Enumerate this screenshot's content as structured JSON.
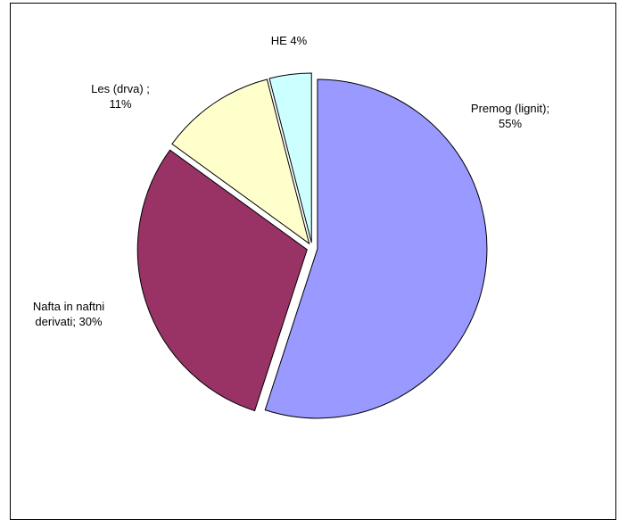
{
  "chart_data": {
    "type": "pie",
    "title": "",
    "slices": [
      {
        "label_lines": [
          "Premog (lignit);",
          "55%"
        ],
        "value": 55,
        "color": "#9999ff"
      },
      {
        "label_lines": [
          "Nafta in naftni",
          "derivati; 30%"
        ],
        "value": 30,
        "color": "#993366"
      },
      {
        "label_lines": [
          "Les (drva) ;",
          "11%"
        ],
        "value": 11,
        "color": "#ffffcc"
      },
      {
        "label_lines": [
          "HE 4%"
        ],
        "value": 4,
        "color": "#ccffff"
      }
    ],
    "exploded": true,
    "legend": "none"
  }
}
